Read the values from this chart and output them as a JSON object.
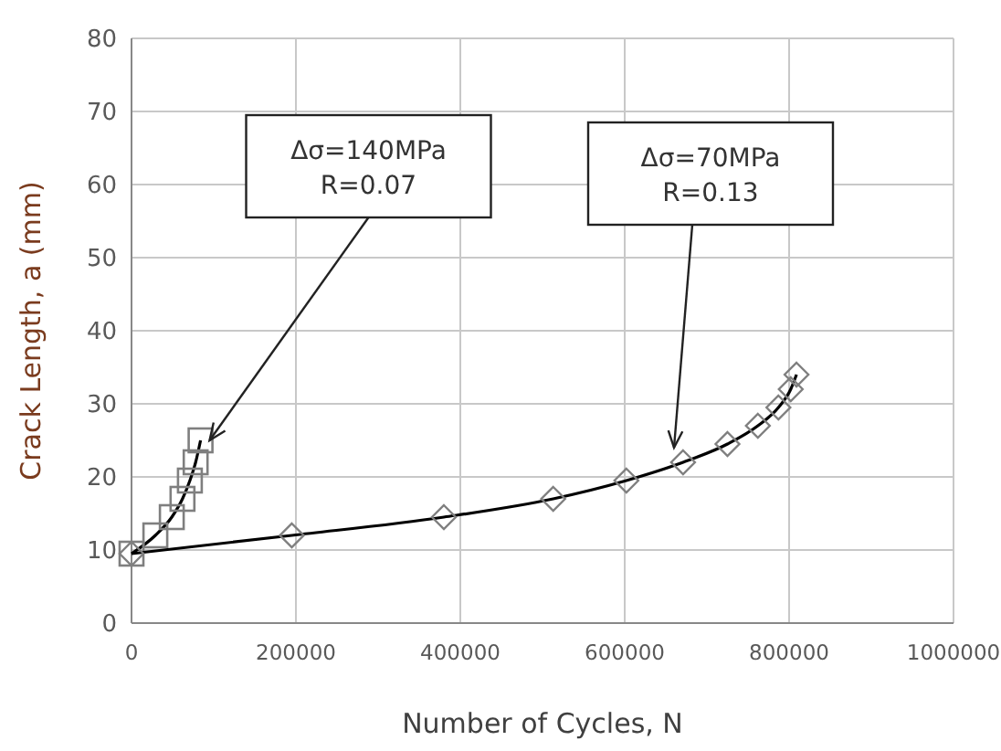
{
  "chart_data": {
    "type": "line",
    "xlabel": "Number of Cycles, N",
    "ylabel": "Crack Length, a (mm)",
    "xlim": [
      0,
      1000000
    ],
    "xticks": [
      0,
      200000,
      400000,
      600000,
      800000,
      1000000
    ],
    "ylim": [
      0,
      80
    ],
    "yticks": [
      0,
      10,
      20,
      30,
      40,
      50,
      60,
      70,
      80
    ],
    "grid": true,
    "series": [
      {
        "color": "#000000",
        "marker": "square",
        "x": [
          0,
          29000,
          49000,
          62000,
          71000,
          78000,
          84000
        ],
        "values": [
          9.5,
          12,
          14.5,
          17,
          19.5,
          22,
          25
        ]
      },
      {
        "color": "#000000",
        "marker": "diamond",
        "x": [
          0,
          195000,
          380000,
          513000,
          602000,
          671000,
          725000,
          762000,
          787000,
          802000,
          809000
        ],
        "values": [
          9.5,
          12,
          14.5,
          17,
          19.5,
          22,
          24.5,
          27,
          29.5,
          32,
          34
        ]
      }
    ],
    "annotations": [
      {
        "text": "Δσ=140MPa\nR=0.07",
        "x": 95000,
        "y": 25
      },
      {
        "text": "Δσ=70MPa\nR=0.13",
        "x": 660000,
        "y": 24
      }
    ]
  }
}
